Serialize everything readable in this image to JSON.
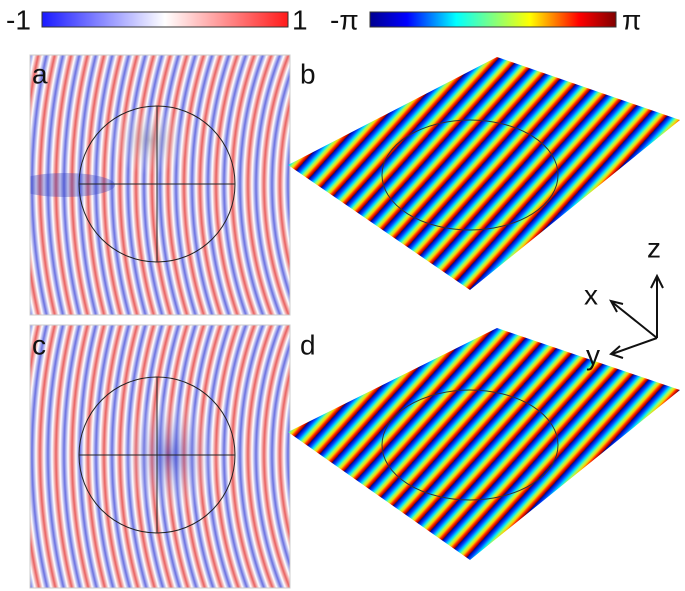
{
  "colorbars": [
    {
      "min_label": "-1",
      "max_label": "1"
    },
    {
      "min_label": "-π",
      "max_label": "π"
    }
  ],
  "panels": [
    "a",
    "b",
    "c",
    "d"
  ],
  "axes": {
    "x": "x",
    "y": "y",
    "z": "z"
  }
}
